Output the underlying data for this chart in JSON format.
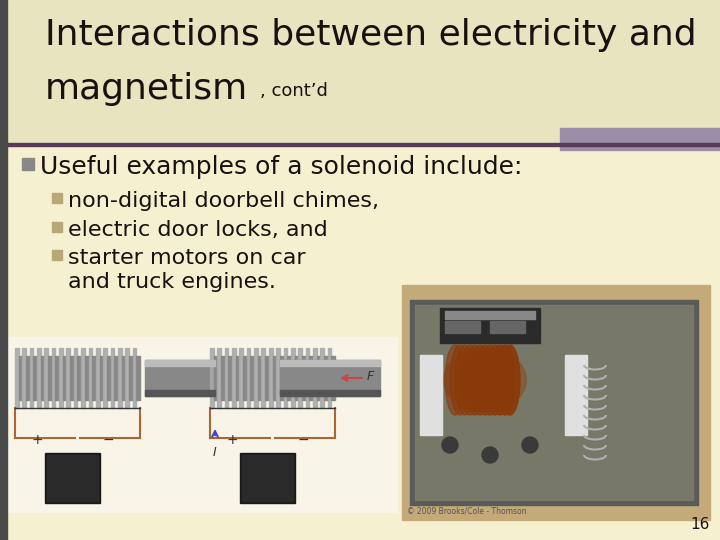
{
  "title_line1": "Interactions between electricity and",
  "title_line2_bold": "magnetism",
  "title_line2_small": ", cont’d",
  "bg_color": "#f5f0d8",
  "left_bar_color": "#4a4a4a",
  "separator_color": "#5a3a5a",
  "accent_rect_color": "#9b8ea8",
  "bullet1_text": "Useful examples of a solenoid include:",
  "bullet2a": "non-digital doorbell chimes,",
  "bullet2b": "electric door locks, and",
  "bullet2c": "starter motors on car",
  "bullet2c2": "and truck engines.",
  "slide_number": "16",
  "bullet1_sq_color": "#888888",
  "bullet2_sq_color": "#b8a878",
  "text_color": "#1a1010",
  "title_font_size": 26,
  "bullet1_font_size": 18,
  "bullet2_font_size": 16,
  "copyright_text": "© 2009 Brooks/Cole - Thomson",
  "diag_bg": "#f0ece0",
  "photo_bg": "#c8b888"
}
